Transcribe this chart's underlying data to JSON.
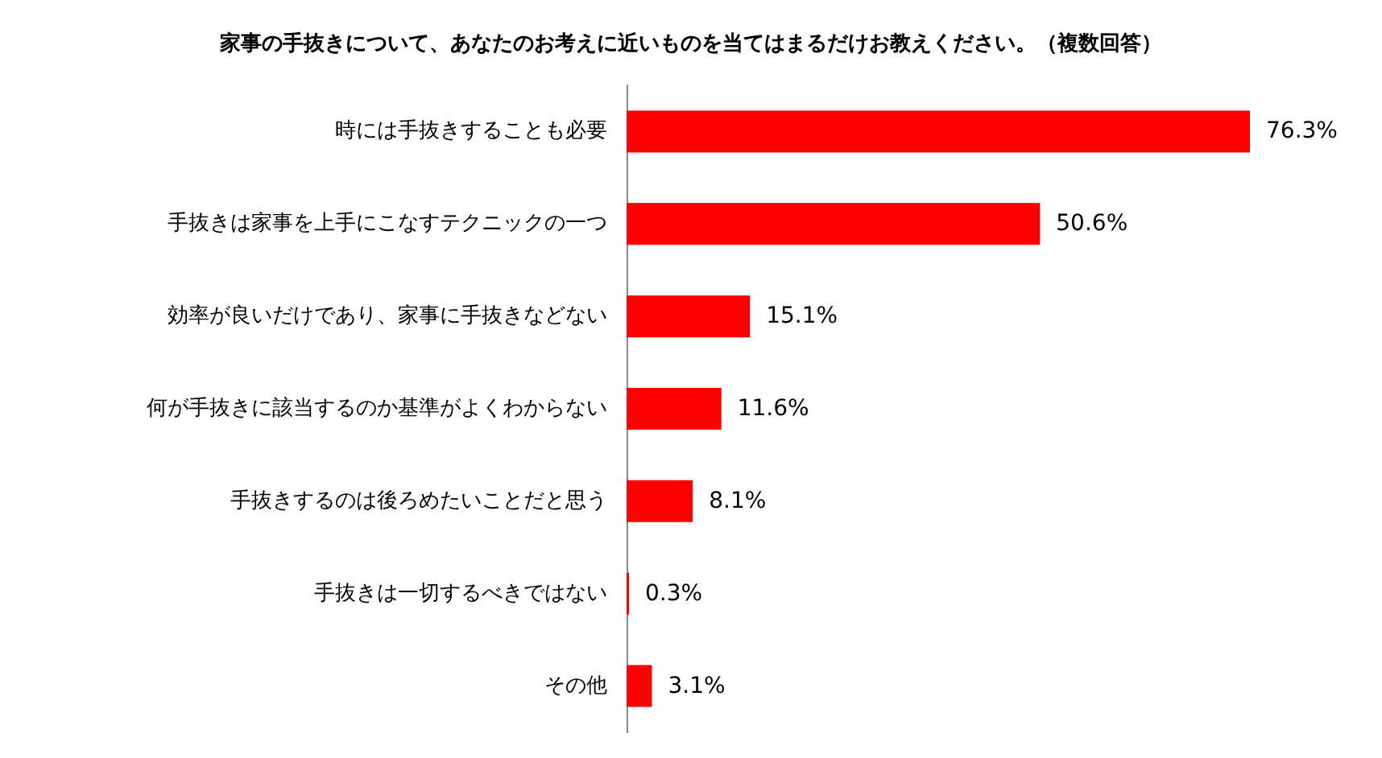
{
  "chart_data": {
    "type": "bar",
    "orientation": "horizontal",
    "title": "家事の手抜きについて、あなたのお考えに近いものを当てはまるだけお教えください。（複数回答）",
    "categories": [
      "時には手抜きすることも必要",
      "手抜きは家事を上手にこなすテクニックの一つ",
      "効率が良いだけであり、家事に手抜きなどない",
      "何が手抜きに該当するのか基準がよくわからない",
      "手抜きするのは後ろめたいことだと思う",
      "手抜きは一切するべきではない",
      "その他"
    ],
    "values": [
      76.3,
      50.6,
      15.1,
      11.6,
      8.1,
      0.3,
      3.1
    ],
    "value_labels": [
      "76.3%",
      "50.6%",
      "15.1%",
      "11.6%",
      "8.1%",
      "0.3%",
      "3.1%"
    ],
    "color": "#ff0000"
  }
}
